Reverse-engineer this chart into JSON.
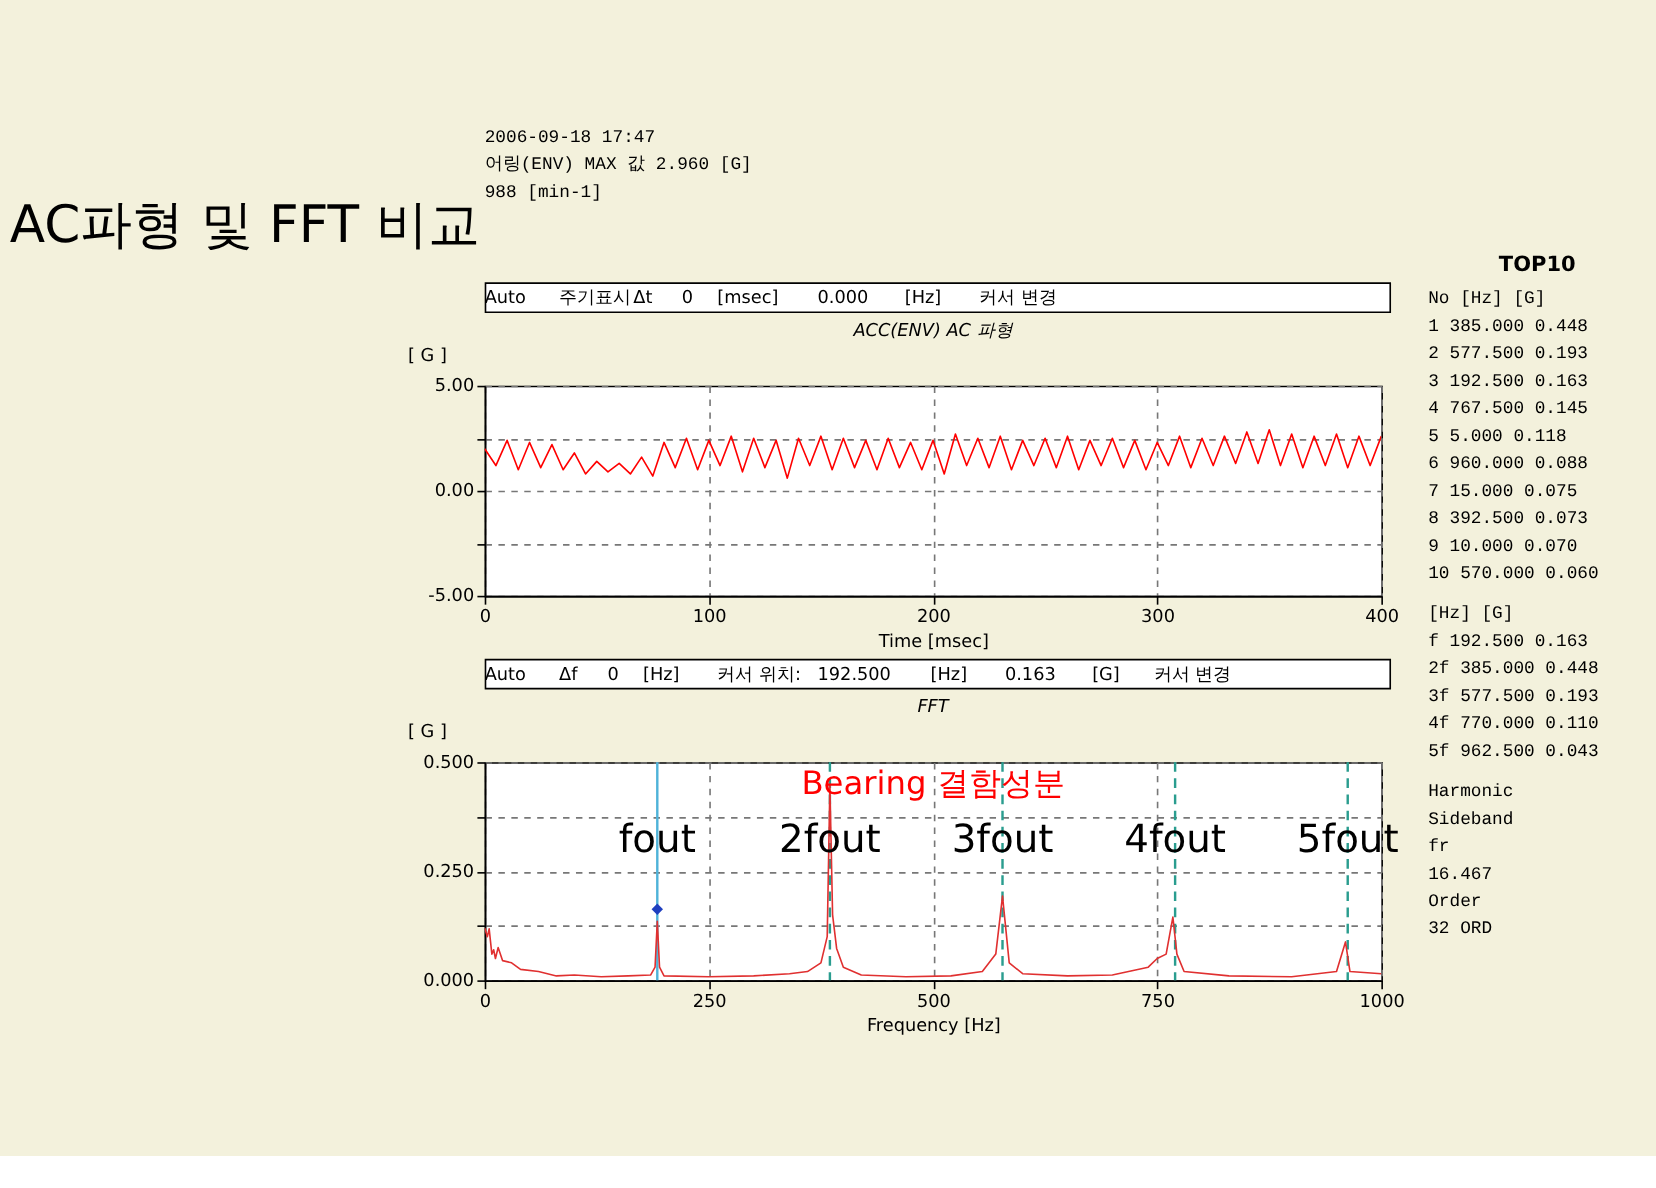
{
  "chart_data": [
    {
      "type": "other",
      "title": "AC파형 및 FFT 비교",
      "annotations": [
        "2006-09-18 17:47",
        "어링(ENV)   MAX 값   2.960 [G]",
        "988 [min-1]"
      ]
    },
    {
      "type": "other",
      "annotations": [
        "Auto",
        "주기표시",
        "Δt",
        "0",
        "[msec]",
        "0.000",
        "[Hz]",
        "커서 변경"
      ]
    },
    {
      "type": "line",
      "title": "ACC(ENV) AC 파형",
      "xlabel": "Time [msec]",
      "ylabel": "[ G ]",
      "xlim": [
        0,
        400
      ],
      "ylim": [
        -5,
        5
      ],
      "xticks": [
        0,
        100,
        200,
        300,
        400
      ],
      "yticks": [
        {
          "value": -5,
          "label": "-5.00"
        },
        {
          "value": -2.5,
          "label": null
        },
        {
          "value": 0,
          "label": "0.00"
        },
        {
          "value": 2.5,
          "label": null
        },
        {
          "value": 5,
          "label": "5.00"
        }
      ],
      "grid": true,
      "x": [
        0,
        5,
        10,
        15,
        20,
        25,
        30,
        35,
        40,
        45,
        50,
        55,
        60,
        65,
        70,
        75,
        80,
        85,
        90,
        95,
        100,
        105,
        110,
        115,
        120,
        125,
        130,
        135,
        140,
        145,
        150,
        155,
        160,
        165,
        170,
        175,
        180,
        185,
        190,
        195,
        200,
        205,
        210,
        215,
        220,
        225,
        230,
        235,
        240,
        245,
        250,
        255,
        260,
        265,
        270,
        275,
        280,
        285,
        290,
        295,
        300,
        305,
        310,
        315,
        320,
        325,
        330,
        335,
        340,
        345,
        350,
        355,
        360,
        365,
        370,
        375,
        380,
        385,
        390,
        395,
        400
      ],
      "series": [
        {
          "color": "#ff0000",
          "values": [
            2.0,
            1.2,
            2.4,
            1.0,
            2.3,
            1.1,
            2.2,
            1.0,
            1.8,
            0.8,
            1.4,
            0.9,
            1.3,
            0.8,
            1.6,
            0.7,
            2.3,
            1.1,
            2.5,
            1.0,
            2.4,
            1.2,
            2.6,
            0.9,
            2.5,
            1.1,
            2.4,
            0.6,
            2.5,
            1.2,
            2.6,
            1.0,
            2.5,
            1.1,
            2.4,
            1.0,
            2.5,
            1.1,
            2.3,
            1.0,
            2.4,
            0.8,
            2.7,
            1.2,
            2.5,
            1.1,
            2.6,
            1.0,
            2.4,
            1.2,
            2.5,
            1.1,
            2.6,
            1.0,
            2.4,
            1.2,
            2.5,
            1.1,
            2.4,
            1.0,
            2.3,
            1.2,
            2.6,
            1.1,
            2.5,
            1.2,
            2.6,
            1.3,
            2.8,
            1.3,
            2.9,
            1.2,
            2.7,
            1.1,
            2.6,
            1.2,
            2.7,
            1.1,
            2.6,
            1.2,
            2.6
          ]
        }
      ]
    },
    {
      "type": "other",
      "annotations": [
        "Auto",
        "Δf",
        "0",
        "[Hz]",
        "커서 위치:",
        "192.500",
        "[Hz]",
        "0.163",
        "[G]",
        "커서 변경"
      ]
    },
    {
      "type": "line",
      "title": "FFT",
      "xlabel": "Frequency [Hz]",
      "ylabel": "[ G ]",
      "xlim": [
        0,
        1000
      ],
      "ylim": [
        0,
        0.5
      ],
      "xticks": [
        0,
        250,
        500,
        750,
        {
          "value": 1000,
          "label": "1000"
        }
      ],
      "yticks": [
        {
          "value": 0,
          "label": "0.000"
        },
        {
          "value": 0.125,
          "label": null
        },
        {
          "value": 0.25,
          "label": "0.250"
        },
        {
          "value": 0.375,
          "label": null
        },
        {
          "value": 0.5,
          "label": "0.500"
        }
      ],
      "grid": true,
      "series": [
        {
          "color": "#e03030",
          "x": [
            0,
            3,
            5,
            8,
            10,
            12,
            15,
            20,
            30,
            40,
            60,
            80,
            100,
            130,
            160,
            185,
            190,
            192.5,
            195,
            200,
            250,
            300,
            340,
            360,
            375,
            382,
            385,
            388,
            392.5,
            400,
            420,
            470,
            520,
            555,
            570,
            577.5,
            585,
            600,
            650,
            700,
            740,
            750,
            760,
            767.5,
            772,
            780,
            830,
            900,
            950,
            960,
            965,
            1000
          ],
          "values": [
            0.12,
            0.1,
            0.118,
            0.06,
            0.07,
            0.05,
            0.075,
            0.045,
            0.04,
            0.025,
            0.02,
            0.01,
            0.012,
            0.008,
            0.01,
            0.012,
            0.03,
            0.135,
            0.03,
            0.01,
            0.008,
            0.01,
            0.015,
            0.02,
            0.04,
            0.1,
            0.448,
            0.15,
            0.073,
            0.03,
            0.012,
            0.008,
            0.01,
            0.02,
            0.06,
            0.193,
            0.04,
            0.015,
            0.01,
            0.012,
            0.03,
            0.05,
            0.06,
            0.145,
            0.06,
            0.02,
            0.01,
            0.008,
            0.02,
            0.088,
            0.02,
            0.015
          ]
        },
        {
          "type": "scatter",
          "marker": "diamond",
          "color": "#1f3fbf",
          "x": [
            192.5
          ],
          "values": [
            0.163
          ]
        }
      ],
      "ref_lines": [
        {
          "axis": "x",
          "value": 192.5,
          "color": "#4fb3d9",
          "line_style": "solid"
        },
        {
          "axis": "x",
          "value": 385,
          "color": "#2a9d8f",
          "line_style": "dashed"
        },
        {
          "axis": "x",
          "value": 577.5,
          "color": "#2a9d8f",
          "line_style": "dashed"
        },
        {
          "axis": "x",
          "value": 770,
          "color": "#2a9d8f",
          "line_style": "dashed"
        },
        {
          "axis": "x",
          "value": 962.5,
          "color": "#2a9d8f",
          "line_style": "dashed"
        }
      ],
      "annotations": [
        "Bearing 결함성분",
        {
          "text": "fout",
          "x": 192.5,
          "y": 0.32
        },
        {
          "text": "2fout",
          "x": 385,
          "y": 0.32
        },
        {
          "text": "3fout",
          "x": 577.5,
          "y": 0.32
        },
        {
          "text": "4fout",
          "x": 770,
          "y": 0.32
        },
        {
          "text": "5fout",
          "x": 962.5,
          "y": 0.32
        }
      ]
    },
    {
      "type": "other",
      "title": "TOP10",
      "annotations": [
        "No [Hz] [G]",
        "1 385.000 0.448",
        "2 577.500 0.193",
        "3 192.500 0.163",
        "4 767.500 0.145",
        "5 5.000 0.118",
        "6 960.000 0.088",
        "7 15.000 0.075",
        "8 392.500 0.073",
        "9 10.000 0.070",
        "10 570.000 0.060"
      ]
    },
    {
      "type": "other",
      "annotations": [
        "[Hz] [G]",
        "f 192.500 0.163",
        "2f 385.000 0.448",
        "3f 577.500 0.193",
        "4f 770.000 0.110",
        "5f 962.500 0.043"
      ]
    },
    {
      "type": "other",
      "annotations": [
        "Harmonic",
        "Sideband",
        "fr",
        "16.467",
        "Order",
        "32 ORD"
      ]
    }
  ]
}
